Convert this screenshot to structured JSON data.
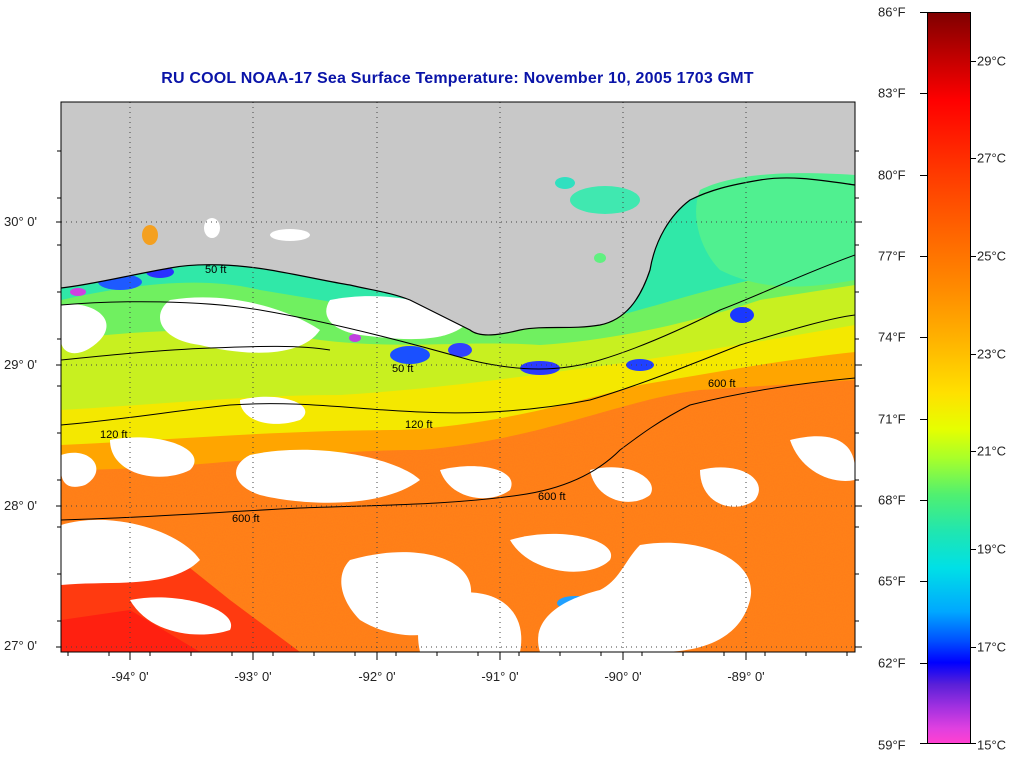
{
  "title": "RU COOL  NOAA-17  Sea Surface Temperature:  November 10, 2005 1703 GMT",
  "latitude_labels": [
    "30° 0'",
    "29° 0'",
    "28° 0'",
    "27° 0'"
  ],
  "longitude_labels": [
    "-94° 0'",
    "-93° 0'",
    "-92° 0'",
    "-91° 0'",
    "-90° 0'",
    "-89° 0'"
  ],
  "contour_labels": [
    "50 ft",
    "120 ft",
    "600 ft"
  ],
  "colorbar": {
    "fahrenheit_labels": [
      "86°F",
      "83°F",
      "80°F",
      "77°F",
      "74°F",
      "71°F",
      "68°F",
      "65°F",
      "62°F",
      "59°F"
    ],
    "celsius_labels": [
      "29°C",
      "27°C",
      "25°C",
      "23°C",
      "21°C",
      "19°C",
      "17°C",
      "15°C"
    ]
  },
  "colors": {
    "title": "#0a14a8",
    "land": "#c8c8c8",
    "cloud": "#ffffff",
    "warm_water": "#ff7a1a",
    "shelf_water": "#f2f020",
    "cool_coastal": "#3cf0a0"
  }
}
